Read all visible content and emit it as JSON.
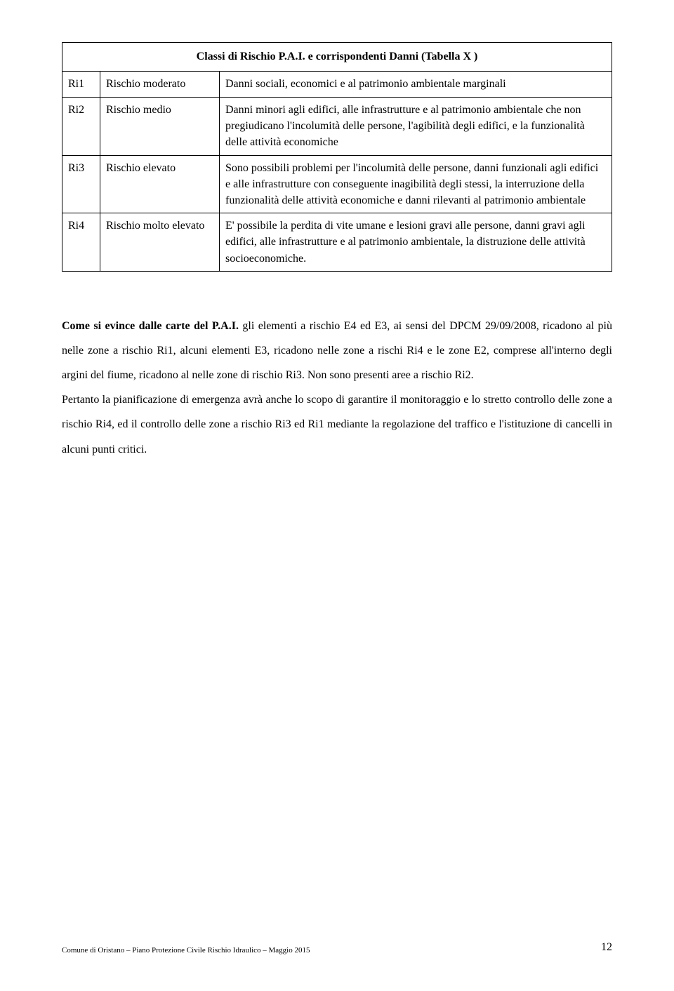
{
  "table": {
    "title": "Classi di Rischio P.A.I. e corrispondenti Danni  (Tabella X )",
    "rows": [
      {
        "code": "Ri1",
        "level": "Rischio moderato",
        "desc": "Danni sociali, economici e al patrimonio ambientale marginali"
      },
      {
        "code": "Ri2",
        "level": "Rischio medio",
        "desc": "Danni minori agli edifici, alle infrastrutture  e al patrimonio ambientale che non pregiudicano l'incolumità delle persone, l'agibilità degli edifici, e la funzionalità delle attività economiche"
      },
      {
        "code": "Ri3",
        "level": "Rischio elevato",
        "desc": "Sono possibili problemi per l'incolumità delle persone, danni funzionali agli edifici e alle infrastrutture con conseguente inagibilità degli stessi, la interruzione della funzionalità delle attività economiche e danni rilevanti al patrimonio ambientale"
      },
      {
        "code": "Ri4",
        "level": "Rischio molto elevato",
        "desc": "E' possibile la perdita di vite umane e lesioni gravi alle persone, danni gravi agli edifici, alle infrastrutture e al patrimonio ambientale, la distruzione delle attività socioeconomiche."
      }
    ]
  },
  "body": {
    "lead": "Come si evince dalle carte del P.A.I.",
    "para1_rest": " gli elementi a rischio E4 ed E3, ai sensi del DPCM 29/09/2008, ricadono al più nelle zone a rischio Ri1, alcuni elementi E3, ricadono nelle zone a rischi Ri4 e le zone E2, comprese all'interno degli argini del fiume, ricadono al  nelle zone di rischio Ri3. Non sono presenti aree a rischio Ri2.",
    "para2": "Pertanto la pianificazione di emergenza avrà anche lo scopo di garantire il monitoraggio e lo stretto controllo delle zone a rischio Ri4, ed il controllo delle zone a rischio Ri3 ed Ri1 mediante la regolazione del traffico e l'istituzione di cancelli in alcuni punti critici."
  },
  "footer": {
    "source": "Comune di Oristano – Piano Protezione Civile Rischio Idraulico – Maggio 2015",
    "page": "12"
  }
}
